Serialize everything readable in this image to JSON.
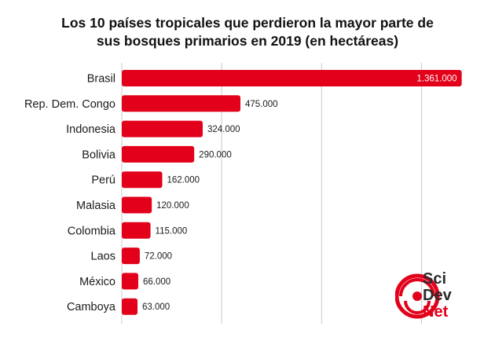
{
  "title_line1": "Los 10 países tropicales que perdieron la mayor parte de",
  "title_line2": "sus bosques primarios en 2019 (en hectáreas)",
  "brand": {
    "word1": "Sci",
    "word2": "Dev",
    "word3": "Net",
    "accent_color": "#e2001a"
  },
  "chart_data": {
    "type": "bar",
    "orientation": "horizontal",
    "title": "Los 10 países tropicales que perdieron la mayor parte de sus bosques primarios en 2019 (en hectáreas)",
    "categories": [
      "Brasil",
      "Rep. Dem. Congo",
      "Indonesia",
      "Bolivia",
      "Perú",
      "Malasia",
      "Colombia",
      "Laos",
      "México",
      "Camboya"
    ],
    "values": [
      1361000,
      475000,
      324000,
      290000,
      162000,
      120000,
      115000,
      72000,
      66000,
      63000
    ],
    "value_labels": [
      "1.361.000",
      "475.000",
      "324.000",
      "290.000",
      "162.000",
      "120.000",
      "115.000",
      "72.000",
      "66.000",
      "63.000"
    ],
    "xlim": [
      0,
      1400000
    ],
    "grid": true,
    "bar_color": "#e2001a",
    "grid_color": "#c8c8c8"
  }
}
